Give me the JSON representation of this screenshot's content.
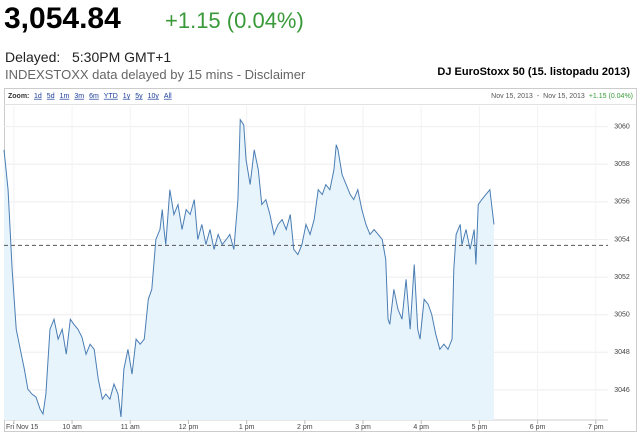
{
  "header": {
    "price": "3,054.84",
    "change": "+1.15 (0.04%)",
    "delayed_label": "Delayed:",
    "delayed_time": "5:30PM GMT+1",
    "disclaimer": "INDEXSTOXX data delayed by 15 mins - Disclaimer"
  },
  "toolbar": {
    "zoom_label": "Zoom:",
    "zoom_options": [
      "1d",
      "5d",
      "1m",
      "3m",
      "6m",
      "YTD",
      "1y",
      "5y",
      "10y",
      "All"
    ],
    "range_start": "Nov 15, 2013",
    "range_separator": "-",
    "range_end": "Nov 15, 2013",
    "range_change": "+1.15 (0.04%)"
  },
  "chart_data": {
    "type": "area",
    "title": "DJ EuroStoxx 50 (15. listopadu 2013)",
    "color": "#4a7db3",
    "fill": "#e8f4fc",
    "grid": true,
    "previous_close": 3053.69,
    "xlim": [
      8.83,
      19.21
    ],
    "ylim": [
      3044.4,
      3061.1
    ],
    "xticks": [
      {
        "value": 9,
        "label": "Fri Nov 15"
      },
      {
        "value": 10,
        "label": "10 am"
      },
      {
        "value": 11,
        "label": "11 am"
      },
      {
        "value": 12,
        "label": "12 pm"
      },
      {
        "value": 13,
        "label": "1 pm"
      },
      {
        "value": 14,
        "label": "2 pm"
      },
      {
        "value": 15,
        "label": "3 pm"
      },
      {
        "value": 16,
        "label": "4 pm"
      },
      {
        "value": 17,
        "label": "5 pm"
      },
      {
        "value": 18,
        "label": "6 pm"
      },
      {
        "value": 19,
        "label": "7 pm"
      }
    ],
    "yticks": [
      3046,
      3048,
      3050,
      3052,
      3054,
      3056,
      3058,
      3060
    ],
    "x": [
      8.83,
      8.9,
      8.97,
      9.04,
      9.11,
      9.18,
      9.24,
      9.31,
      9.38,
      9.45,
      9.5,
      9.55,
      9.62,
      9.69,
      9.76,
      9.83,
      9.9,
      9.97,
      10.03,
      10.1,
      10.17,
      10.24,
      10.31,
      10.38,
      10.45,
      10.52,
      10.58,
      10.65,
      10.72,
      10.79,
      10.84,
      10.89,
      10.96,
      11.03,
      11.1,
      11.17,
      11.24,
      11.31,
      11.37,
      11.44,
      11.51,
      11.55,
      11.58,
      11.61,
      11.68,
      11.75,
      11.82,
      11.89,
      11.96,
      12.03,
      12.1,
      12.16,
      12.23,
      12.3,
      12.37,
      12.44,
      12.51,
      12.58,
      12.65,
      12.71,
      12.78,
      12.85,
      12.89,
      12.95,
      12.99,
      13.06,
      13.13,
      13.2,
      13.26,
      13.33,
      13.4,
      13.47,
      13.54,
      13.61,
      13.68,
      13.75,
      13.81,
      13.88,
      13.95,
      14.02,
      14.09,
      14.16,
      14.23,
      14.3,
      14.36,
      14.43,
      14.5,
      14.54,
      14.57,
      14.64,
      14.71,
      14.78,
      14.84,
      14.91,
      14.98,
      15.05,
      15.12,
      15.19,
      15.26,
      15.33,
      15.39,
      15.43,
      15.46,
      15.53,
      15.6,
      15.67,
      15.74,
      15.81,
      15.88,
      15.94,
      15.98,
      16.05,
      16.12,
      16.18,
      16.25,
      16.32,
      16.39,
      16.46,
      16.53,
      16.56,
      16.6,
      16.67,
      16.7,
      16.77,
      16.84,
      16.91,
      16.94,
      16.98,
      17.04,
      17.11,
      17.18,
      17.25
    ],
    "values": [
      3058.77,
      3056.65,
      3052.41,
      3049.23,
      3048.16,
      3047.1,
      3046.04,
      3045.78,
      3045.62,
      3044.98,
      3044.72,
      3045.78,
      3049.23,
      3049.76,
      3048.7,
      3049.23,
      3047.9,
      3049.76,
      3049.49,
      3049.23,
      3048.8,
      3047.9,
      3048.43,
      3048.16,
      3046.57,
      3045.51,
      3045.78,
      3045.51,
      3046.31,
      3045.78,
      3044.56,
      3047.1,
      3048.16,
      3046.84,
      3048.7,
      3048.43,
      3048.7,
      3050.82,
      3051.35,
      3054.0,
      3054.53,
      3055.59,
      3054.53,
      3053.73,
      3056.65,
      3055.33,
      3055.86,
      3054.53,
      3055.59,
      3055.33,
      3056.12,
      3054.0,
      3054.8,
      3053.73,
      3054.53,
      3053.47,
      3054.27,
      3053.73,
      3054.0,
      3054.27,
      3053.47,
      3056.12,
      3060.37,
      3060.1,
      3058.24,
      3056.92,
      3058.77,
      3057.71,
      3055.86,
      3056.12,
      3055.33,
      3054.27,
      3054.8,
      3055.06,
      3054.53,
      3055.33,
      3053.47,
      3053.2,
      3053.73,
      3054.8,
      3054.27,
      3055.06,
      3056.65,
      3056.39,
      3056.92,
      3056.65,
      3057.71,
      3059.04,
      3058.77,
      3057.45,
      3056.92,
      3056.39,
      3056.12,
      3056.65,
      3055.59,
      3054.8,
      3054.27,
      3054.53,
      3054.27,
      3054.0,
      3052.94,
      3049.76,
      3049.49,
      3051.35,
      3050.29,
      3049.76,
      3051.88,
      3049.23,
      3052.67,
      3049.23,
      3048.7,
      3050.82,
      3050.55,
      3050.02,
      3048.96,
      3048.16,
      3048.43,
      3048.16,
      3048.7,
      3052.41,
      3054.27,
      3054.8,
      3053.73,
      3054.53,
      3053.47,
      3054.53,
      3052.67,
      3055.86,
      3056.12,
      3056.39,
      3056.65,
      3054.8
    ]
  }
}
